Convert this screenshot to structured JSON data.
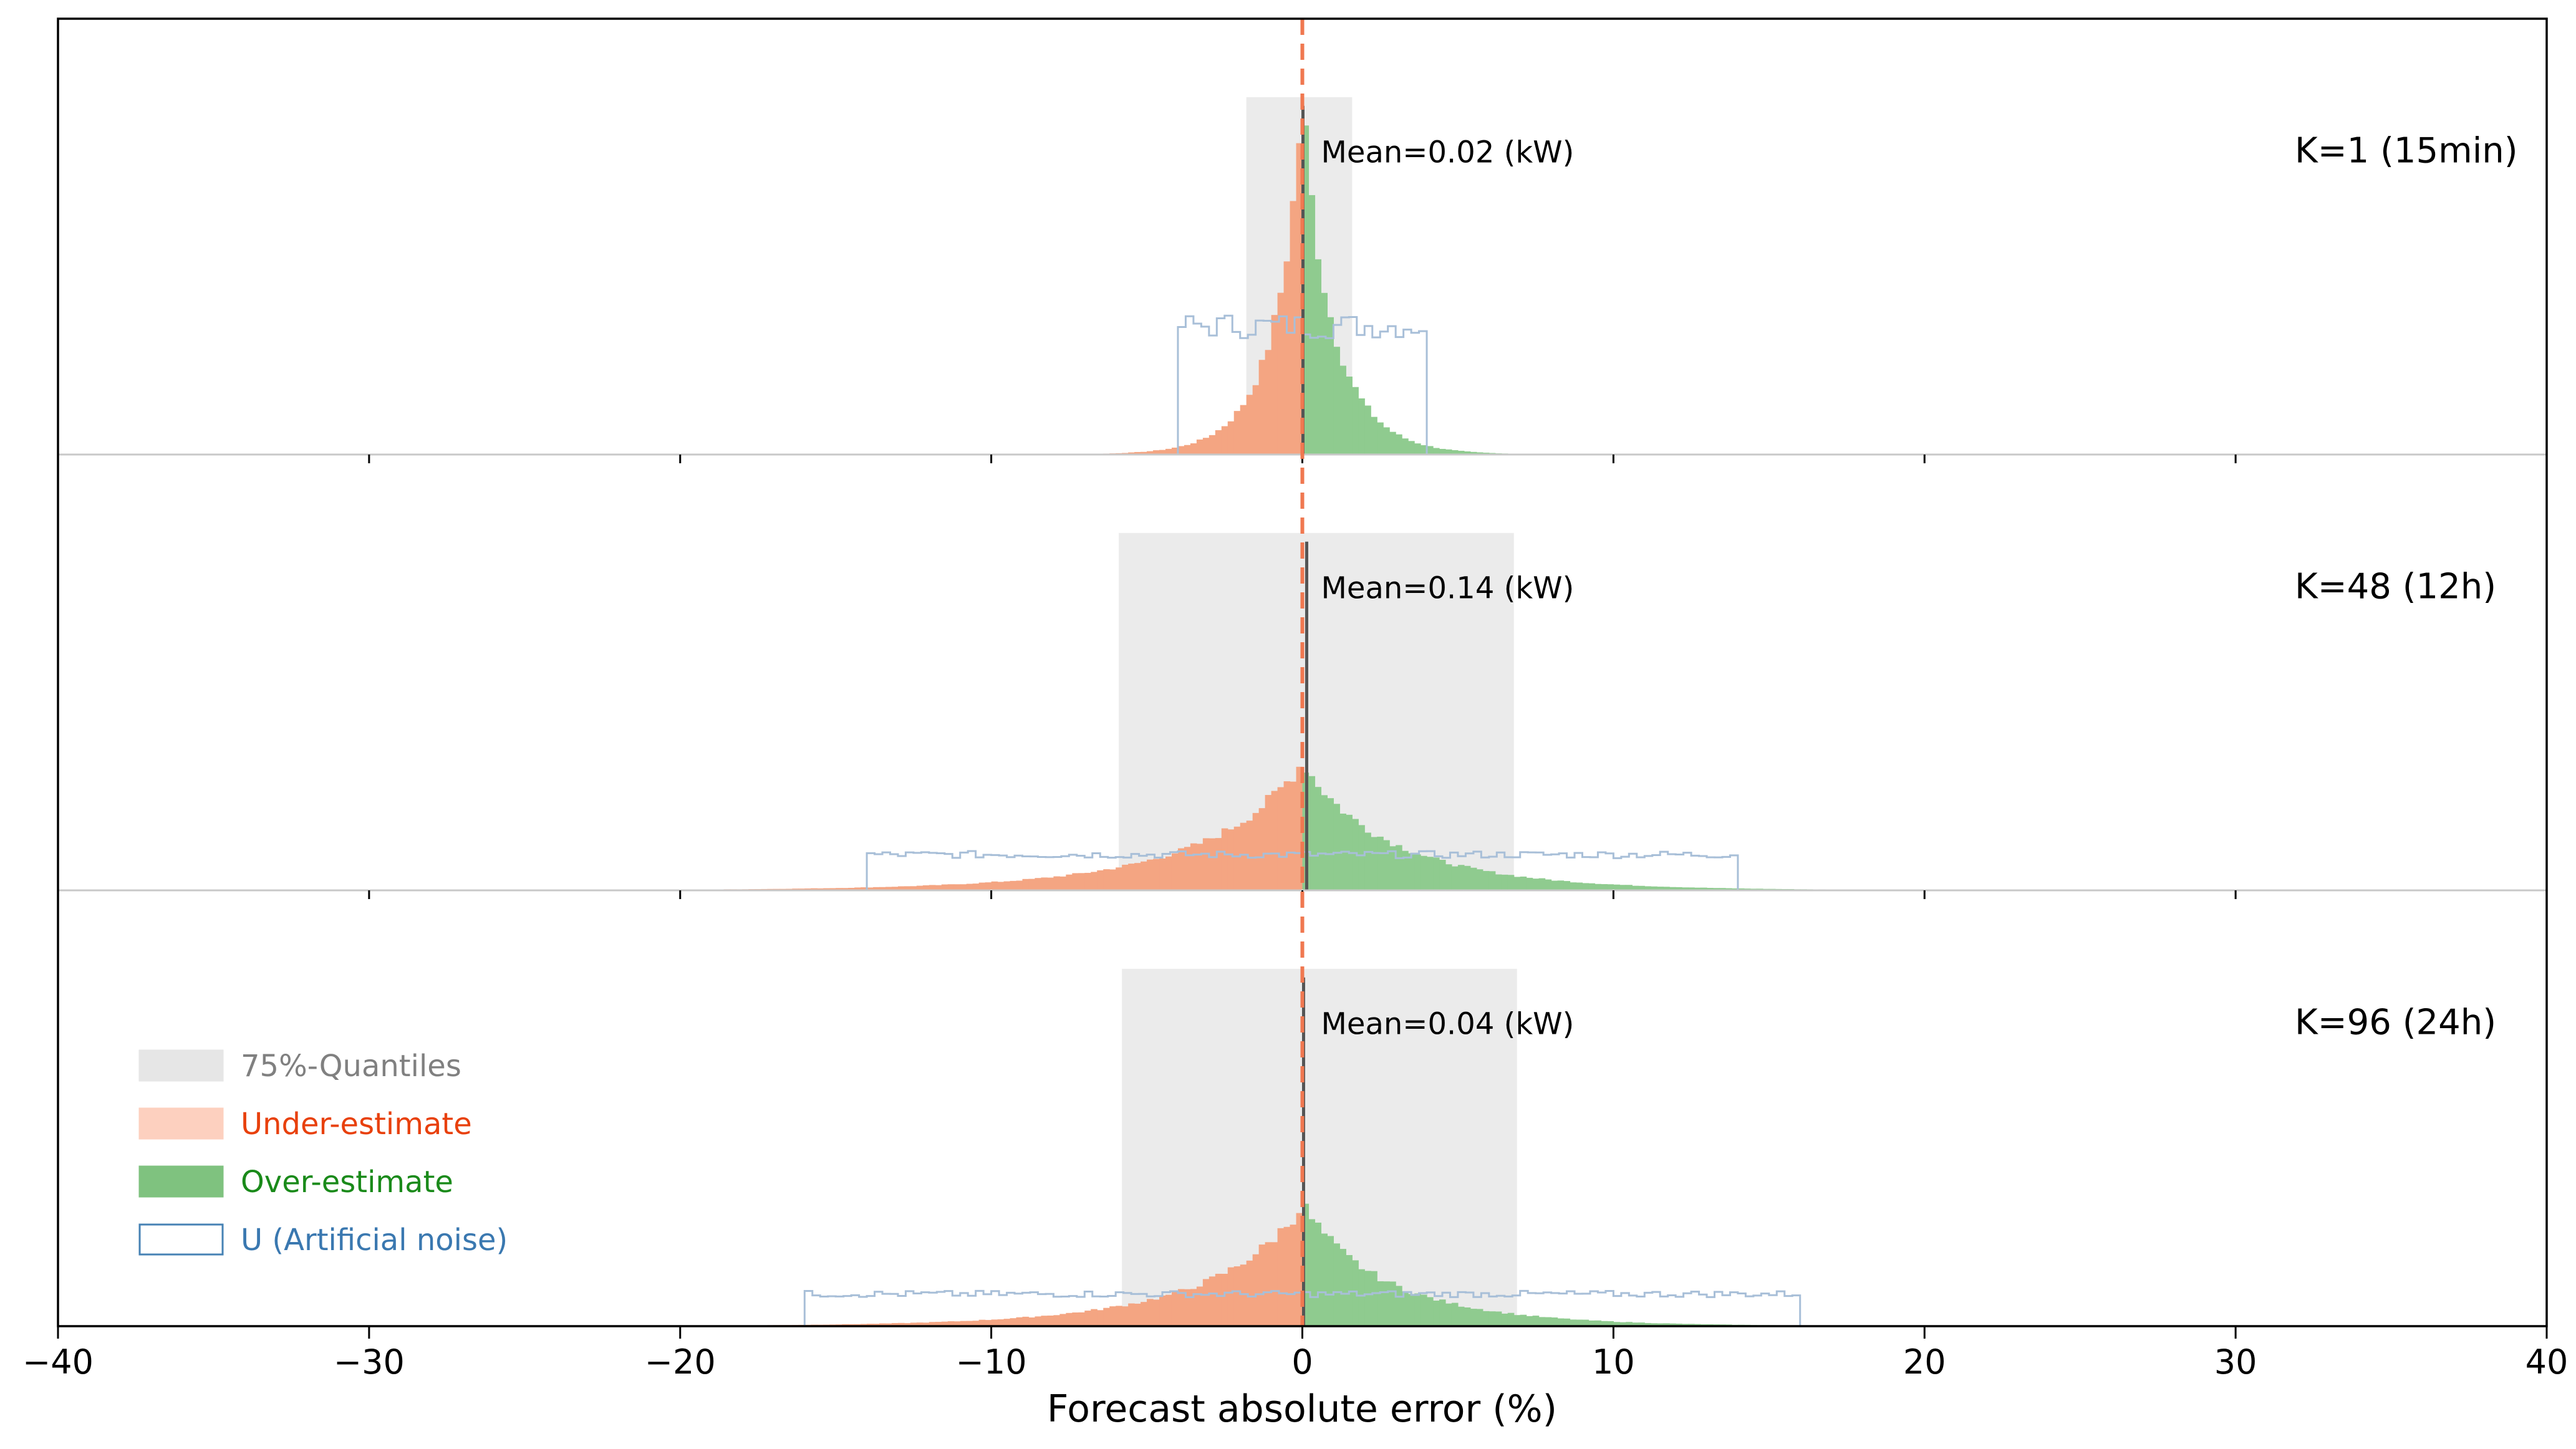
{
  "chart_data": {
    "type": "bar",
    "xlabel": "Forecast absolute error (%)",
    "xlim": [
      -40,
      40
    ],
    "xticks": [
      -40,
      -30,
      -20,
      -10,
      0,
      10,
      20,
      30,
      40
    ],
    "xtick_labels": [
      "−40",
      "−30",
      "−20",
      "−10",
      "0",
      "10",
      "20",
      "30",
      "40"
    ],
    "legend": {
      "placement": "lower-left (bottom panel)",
      "entries": [
        {
          "label": "75%-Quantiles",
          "color": "#e6e6e6",
          "text_color": "#808080"
        },
        {
          "label": "Under-estimate",
          "color": "#fdd0bf",
          "text_color": "#e8400c"
        },
        {
          "label": "Over-estimate",
          "color": "#7fc27f",
          "text_color": "#1a8a1a"
        },
        {
          "label": "U (Artificial noise)",
          "color": "#ffffff",
          "edge": "#4682b4",
          "text_color": "#3a78b0"
        }
      ]
    },
    "colors": {
      "under": "#f4a582",
      "over": "#8fcb8f",
      "quantile": "#ebebeb",
      "noise": "#a8bfd8",
      "zero_line": "#f07850",
      "mean_line": "#555555"
    },
    "panels": [
      {
        "label": "K=1 (15min)",
        "mean_text": "Mean=0.02 (kW)",
        "mean": 0.02,
        "quantile_range": [
          -1.8,
          1.6
        ],
        "noise_range": [
          -4.0,
          4.0
        ],
        "noise_level": 0.36,
        "peak": 1.0,
        "scale_left": 1.0,
        "scale_right": 1.05,
        "tail_extent": [
          -10,
          9
        ]
      },
      {
        "label": "K=48 (12h)",
        "mean_text": "Mean=0.14 (kW)",
        "mean": 0.14,
        "quantile_range": [
          -5.9,
          6.8
        ],
        "noise_range": [
          -14.0,
          14.0
        ],
        "noise_level": 0.1,
        "peak": 0.36,
        "scale_left": 3.6,
        "scale_right": 3.2,
        "tail_extent": [
          -37,
          40
        ]
      },
      {
        "label": "K=96 (24h)",
        "mean_text": "Mean=0.04 (kW)",
        "mean": 0.04,
        "quantile_range": [
          -5.8,
          6.9
        ],
        "noise_range": [
          -16.0,
          16.0
        ],
        "noise_level": 0.09,
        "peak": 0.34,
        "scale_left": 3.4,
        "scale_right": 3.0,
        "tail_extent": [
          -38,
          32
        ]
      }
    ]
  }
}
